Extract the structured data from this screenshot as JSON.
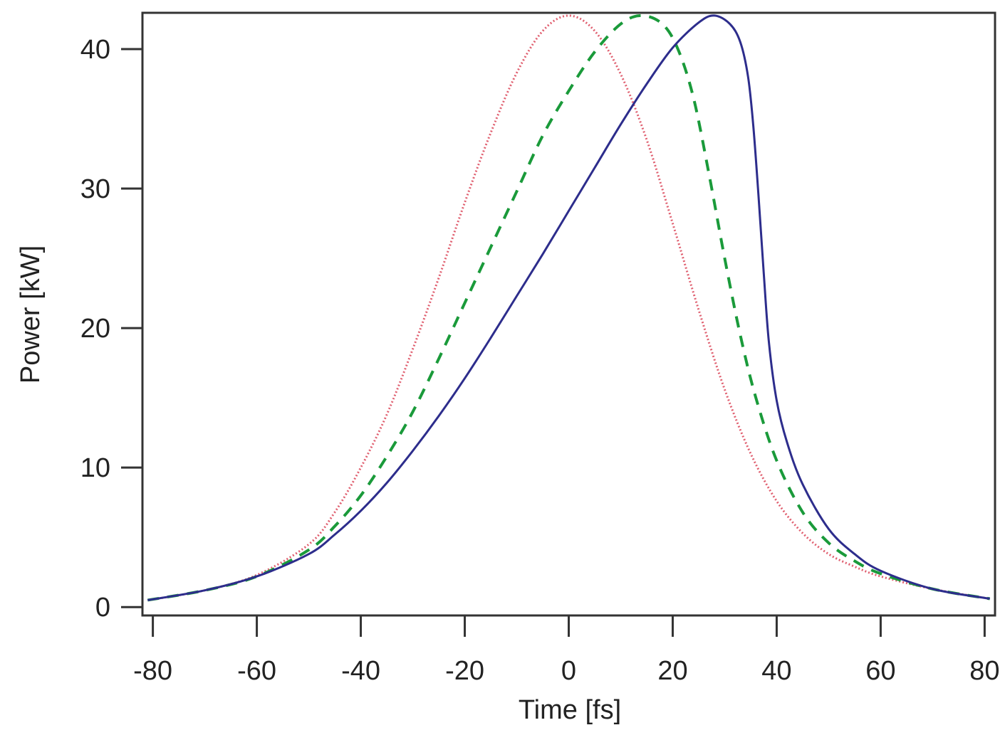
{
  "chart_data": {
    "type": "line",
    "title": "",
    "xlabel": "Time [fs]",
    "ylabel": "Power [kW]",
    "xlim": [
      -82,
      82
    ],
    "ylim": [
      -0.6,
      42.6
    ],
    "xticks": [
      -80,
      -60,
      -40,
      -20,
      0,
      20,
      40,
      60,
      80
    ],
    "yticks": [
      0,
      10,
      20,
      30,
      40
    ],
    "grid": false,
    "legend": "none",
    "series": [
      {
        "name": "red-dotted",
        "color": "#e06070",
        "style": "dotted",
        "x": [
          -81,
          -70,
          -60,
          -50,
          -45,
          -40,
          -35,
          -30,
          -25,
          -20,
          -15,
          -10,
          -5,
          0,
          5,
          10,
          15,
          20,
          25,
          30,
          35,
          40,
          45,
          50,
          55,
          60,
          70,
          81
        ],
        "y": [
          0.5,
          1.2,
          2.3,
          4.5,
          6.8,
          10.0,
          13.8,
          18.5,
          23.6,
          29.0,
          34.0,
          38.3,
          41.3,
          42.4,
          41.3,
          38.2,
          33.5,
          27.5,
          21.3,
          15.6,
          11.0,
          7.6,
          5.3,
          3.8,
          2.9,
          2.2,
          1.3,
          0.6
        ]
      },
      {
        "name": "green-dashed",
        "color": "#1a9a3a",
        "style": "dashed",
        "x": [
          -81,
          -70,
          -60,
          -50,
          -45,
          -40,
          -35,
          -30,
          -25,
          -20,
          -15,
          -10,
          -5,
          0,
          5,
          10,
          14,
          18,
          21,
          24,
          27,
          30,
          33,
          36,
          40,
          45,
          50,
          55,
          60,
          70,
          81
        ],
        "y": [
          0.5,
          1.2,
          2.2,
          4.1,
          5.8,
          8.0,
          10.8,
          14.0,
          17.8,
          21.8,
          25.8,
          29.8,
          33.8,
          37.0,
          39.8,
          41.8,
          42.4,
          41.8,
          40.0,
          36.5,
          31.0,
          25.0,
          19.5,
          15.0,
          10.5,
          6.8,
          4.6,
          3.3,
          2.4,
          1.3,
          0.6
        ]
      },
      {
        "name": "blue-solid",
        "color": "#2d2d8c",
        "style": "solid",
        "x": [
          -81,
          -70,
          -60,
          -50,
          -45,
          -40,
          -35,
          -30,
          -25,
          -20,
          -15,
          -10,
          -5,
          0,
          5,
          10,
          15,
          20,
          25,
          28,
          31,
          33,
          34.5,
          35.5,
          36.5,
          37.5,
          38.5,
          40,
          42,
          45,
          50,
          55,
          60,
          70,
          81
        ],
        "y": [
          0.5,
          1.2,
          2.2,
          3.8,
          5.2,
          6.9,
          8.9,
          11.2,
          13.7,
          16.4,
          19.3,
          22.3,
          25.3,
          28.4,
          31.5,
          34.6,
          37.5,
          40.1,
          41.9,
          42.4,
          41.8,
          40.5,
          38.0,
          34.5,
          29.5,
          24.0,
          19.0,
          14.8,
          11.8,
          8.8,
          5.6,
          3.8,
          2.6,
          1.3,
          0.6
        ]
      }
    ]
  }
}
